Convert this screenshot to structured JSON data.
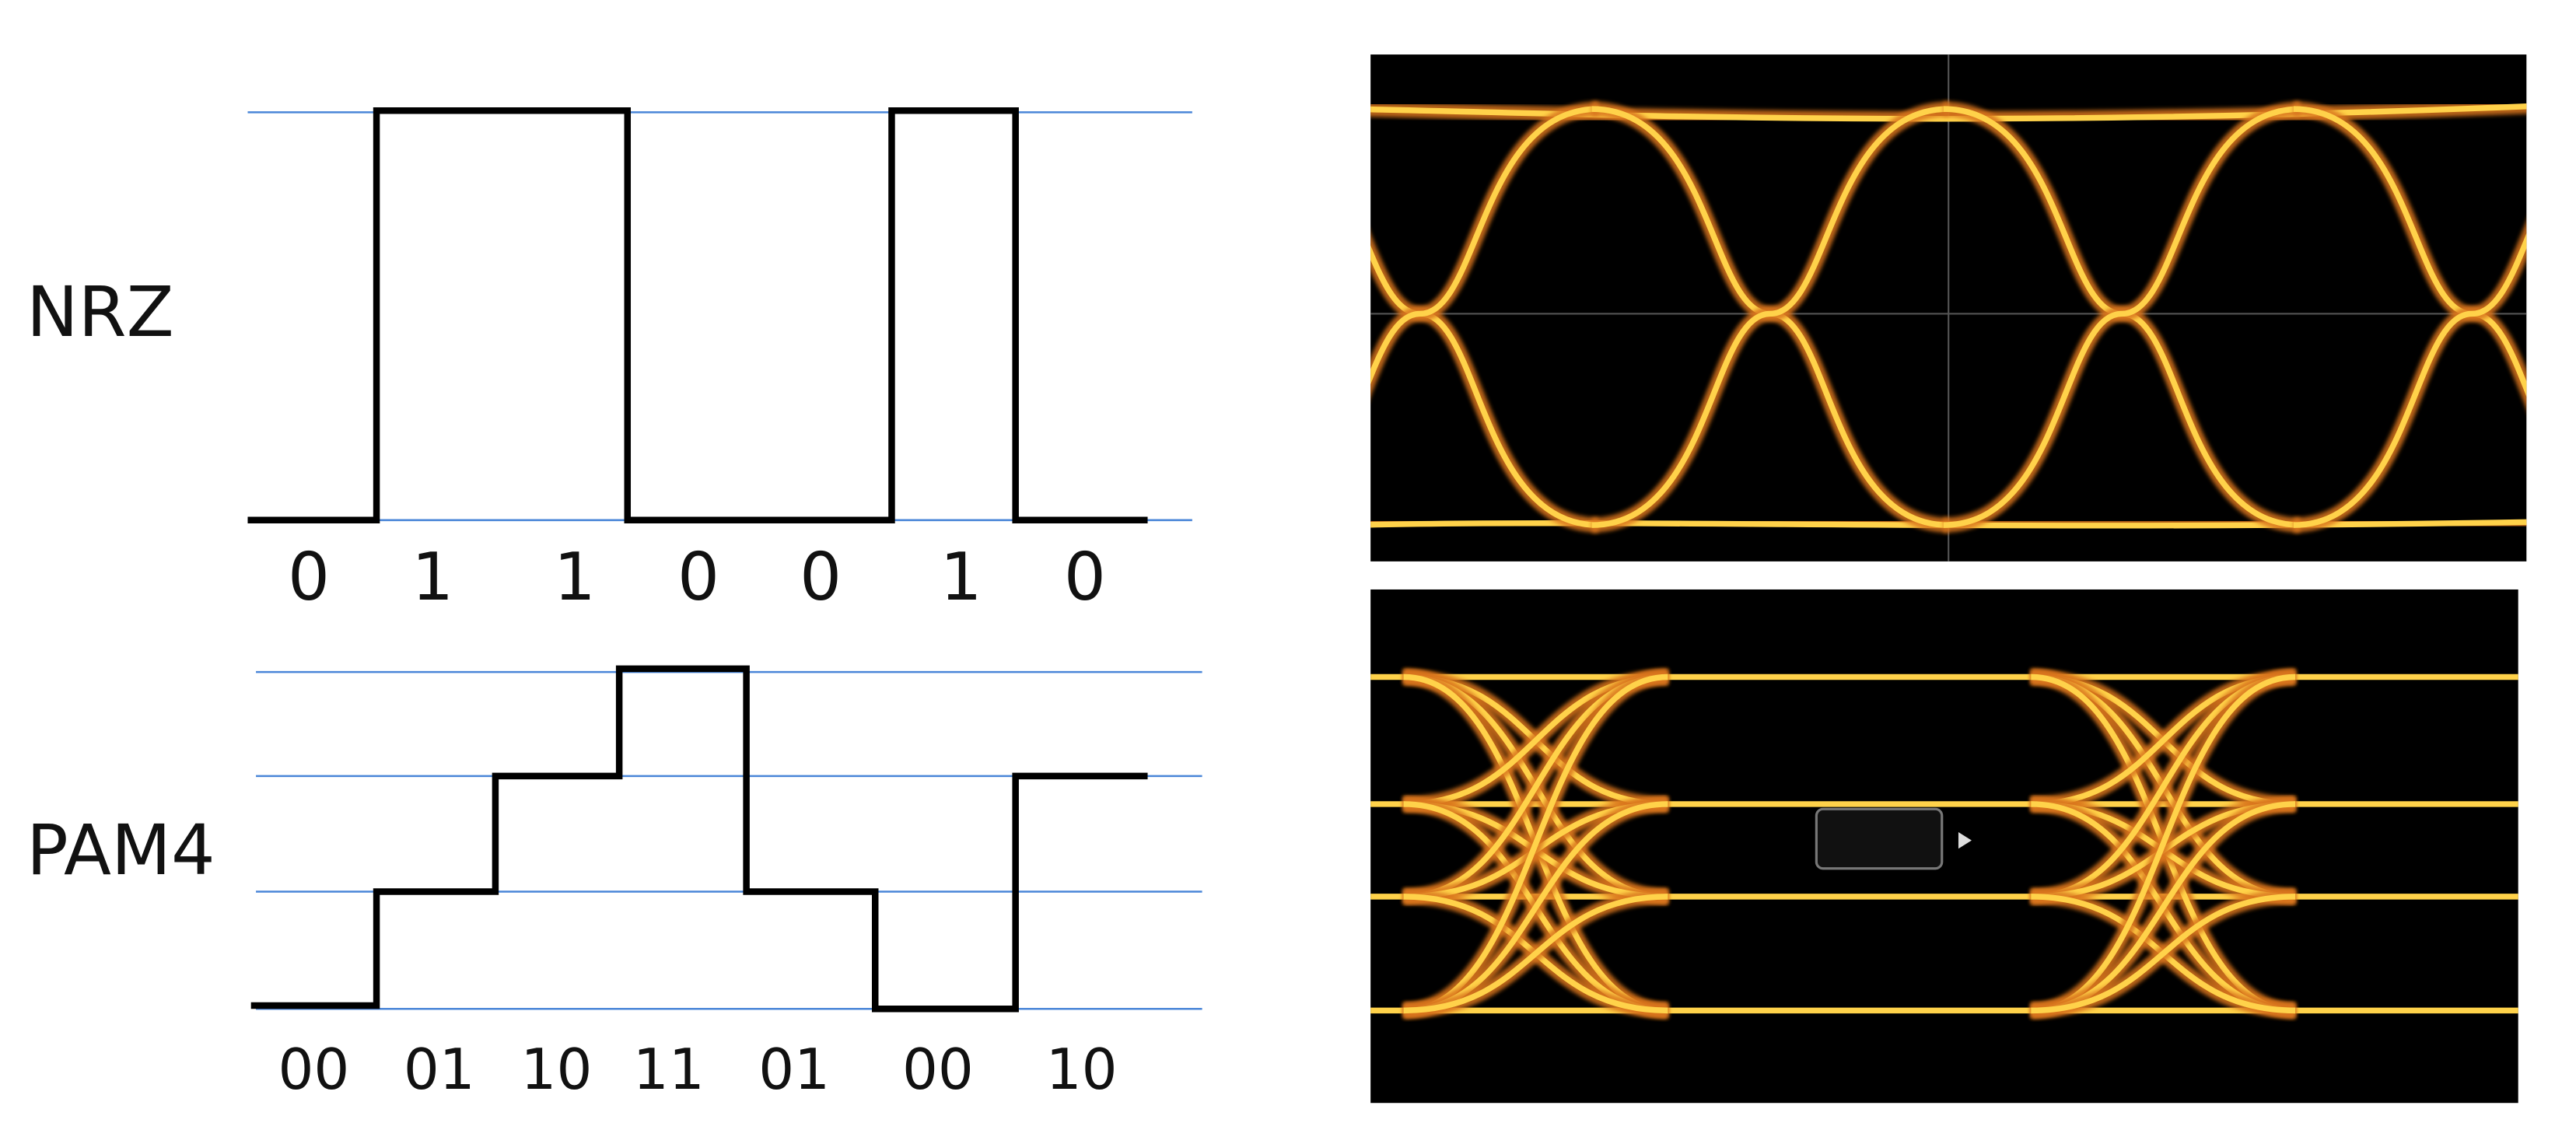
{
  "nrz": {
    "label": "NRZ",
    "bits": [
      "0",
      "1",
      "1",
      "0",
      "0",
      "1",
      "0"
    ]
  },
  "pam4": {
    "label": "PAM4",
    "symbols": [
      "00",
      "01",
      "10",
      "11",
      "01",
      "00",
      "10"
    ]
  }
}
